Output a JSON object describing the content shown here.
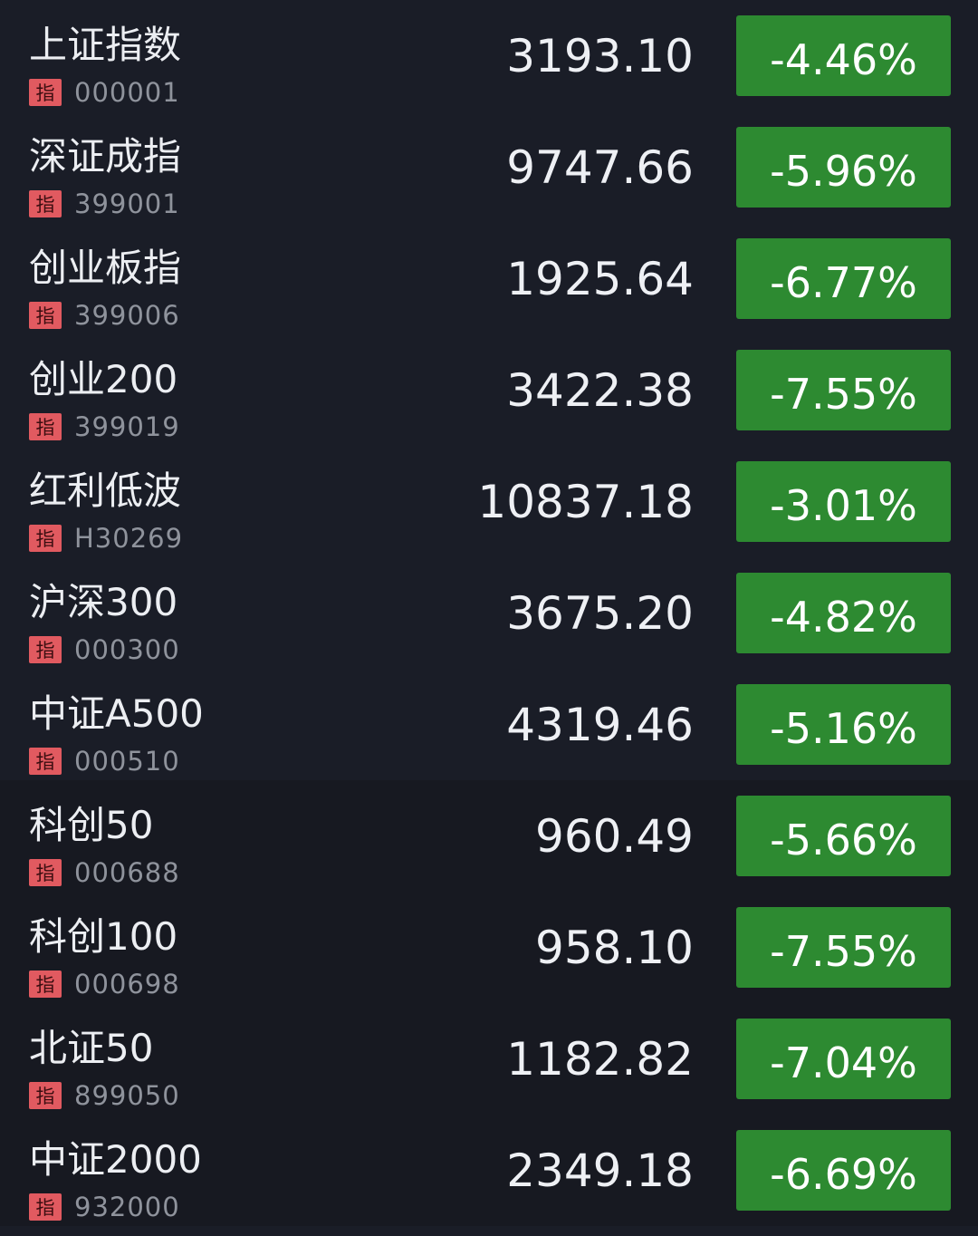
{
  "badge_label": "指",
  "colors": {
    "background": "#1a1d27",
    "down": "#2d8a31",
    "badge": "#e15a60"
  },
  "rows": [
    {
      "name": "上证指数",
      "code": "000001",
      "price": "3193.10",
      "change": "-4.46%"
    },
    {
      "name": "深证成指",
      "code": "399001",
      "price": "9747.66",
      "change": "-5.96%"
    },
    {
      "name": "创业板指",
      "code": "399006",
      "price": "1925.64",
      "change": "-6.77%"
    },
    {
      "name": "创业200",
      "code": "399019",
      "price": "3422.38",
      "change": "-7.55%"
    },
    {
      "name": "红利低波",
      "code": "H30269",
      "price": "10837.18",
      "change": "-3.01%"
    },
    {
      "name": "沪深300",
      "code": "000300",
      "price": "3675.20",
      "change": "-4.82%"
    },
    {
      "name": "中证A500",
      "code": "000510",
      "price": "4319.46",
      "change": "-5.16%"
    },
    {
      "name": "科创50",
      "code": "000688",
      "price": "960.49",
      "change": "-5.66%"
    },
    {
      "name": "科创100",
      "code": "000698",
      "price": "958.10",
      "change": "-7.55%"
    },
    {
      "name": "北证50",
      "code": "899050",
      "price": "1182.82",
      "change": "-7.04%"
    },
    {
      "name": "中证2000",
      "code": "932000",
      "price": "2349.18",
      "change": "-6.69%"
    }
  ]
}
